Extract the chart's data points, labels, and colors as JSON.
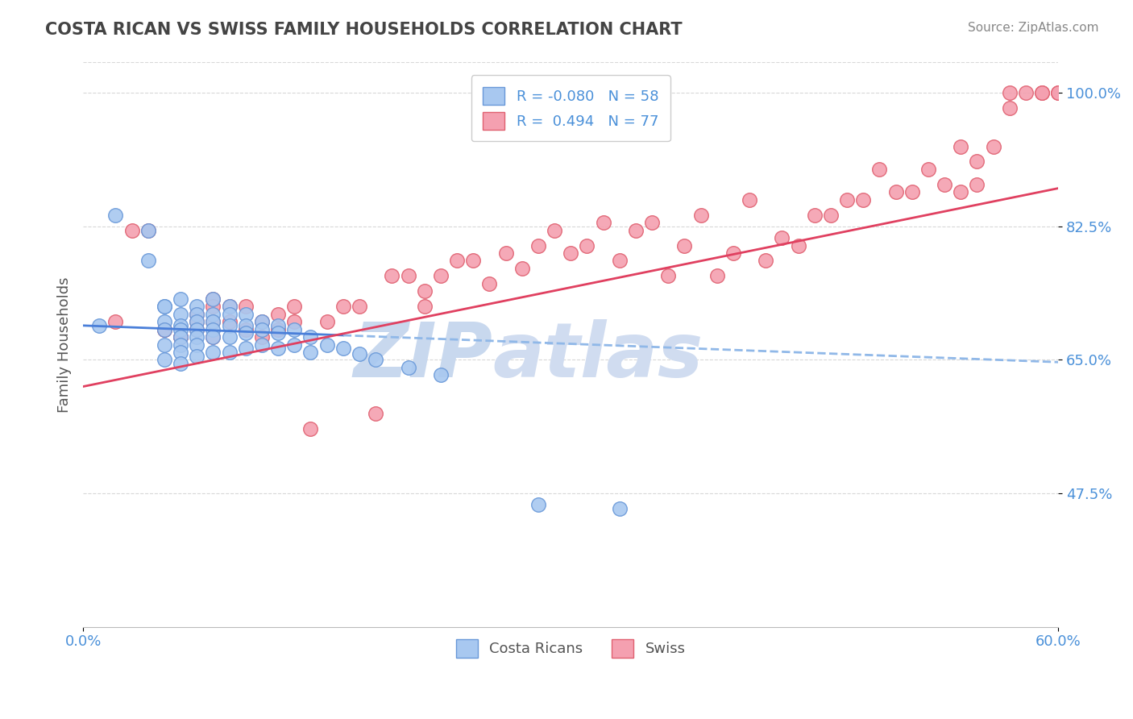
{
  "title": "COSTA RICAN VS SWISS FAMILY HOUSEHOLDS CORRELATION CHART",
  "source_text": "Source: ZipAtlas.com",
  "ylabel": "Family Households",
  "xlim": [
    0.0,
    0.6
  ],
  "ylim": [
    0.3,
    1.04
  ],
  "xtick_labels": [
    "0.0%",
    "60.0%"
  ],
  "xtick_positions": [
    0.0,
    0.6
  ],
  "ytick_labels": [
    "47.5%",
    "65.0%",
    "82.5%",
    "100.0%"
  ],
  "ytick_positions": [
    0.475,
    0.65,
    0.825,
    1.0
  ],
  "legend_labels": [
    "Costa Ricans",
    "Swiss"
  ],
  "blue_color": "#A8C8F0",
  "pink_color": "#F4A0B0",
  "blue_edge": "#6898D8",
  "pink_edge": "#E06070",
  "trend_blue_solid_color": "#4A7FD9",
  "trend_blue_dash_color": "#90B8E8",
  "trend_pink_color": "#E04060",
  "R_blue": -0.08,
  "N_blue": 58,
  "R_pink": 0.494,
  "N_pink": 77,
  "blue_trend_x0": 0.0,
  "blue_trend_y0": 0.695,
  "blue_trend_x1": 0.6,
  "blue_trend_y1": 0.647,
  "blue_trend_solid_end": 0.16,
  "pink_trend_x0": 0.0,
  "pink_trend_y0": 0.615,
  "pink_trend_x1": 0.6,
  "pink_trend_y1": 0.875,
  "watermark_text": "ZIP",
  "watermark_text2": "atlas",
  "watermark_color": "#C8D8EE",
  "background_color": "#FFFFFF",
  "grid_color": "#D8D8D8",
  "title_color": "#444444",
  "label_color": "#4A90D9",
  "blue_scatter_x": [
    0.01,
    0.02,
    0.04,
    0.04,
    0.05,
    0.05,
    0.05,
    0.05,
    0.05,
    0.05,
    0.06,
    0.06,
    0.06,
    0.06,
    0.06,
    0.06,
    0.06,
    0.06,
    0.07,
    0.07,
    0.07,
    0.07,
    0.07,
    0.07,
    0.07,
    0.08,
    0.08,
    0.08,
    0.08,
    0.08,
    0.08,
    0.09,
    0.09,
    0.09,
    0.09,
    0.09,
    0.1,
    0.1,
    0.1,
    0.1,
    0.11,
    0.11,
    0.11,
    0.12,
    0.12,
    0.12,
    0.13,
    0.13,
    0.14,
    0.14,
    0.15,
    0.16,
    0.17,
    0.18,
    0.2,
    0.22,
    0.28,
    0.33
  ],
  "blue_scatter_y": [
    0.695,
    0.84,
    0.82,
    0.78,
    0.72,
    0.7,
    0.69,
    0.67,
    0.65,
    0.72,
    0.73,
    0.71,
    0.695,
    0.69,
    0.68,
    0.67,
    0.66,
    0.645,
    0.72,
    0.71,
    0.7,
    0.69,
    0.68,
    0.67,
    0.655,
    0.73,
    0.71,
    0.7,
    0.69,
    0.68,
    0.66,
    0.72,
    0.71,
    0.695,
    0.68,
    0.66,
    0.71,
    0.695,
    0.685,
    0.665,
    0.7,
    0.69,
    0.67,
    0.695,
    0.685,
    0.665,
    0.69,
    0.67,
    0.68,
    0.66,
    0.67,
    0.665,
    0.658,
    0.65,
    0.64,
    0.63,
    0.46,
    0.455
  ],
  "pink_scatter_x": [
    0.02,
    0.03,
    0.04,
    0.05,
    0.05,
    0.06,
    0.06,
    0.07,
    0.07,
    0.07,
    0.08,
    0.08,
    0.08,
    0.08,
    0.09,
    0.09,
    0.1,
    0.1,
    0.11,
    0.11,
    0.12,
    0.12,
    0.13,
    0.13,
    0.14,
    0.15,
    0.16,
    0.17,
    0.18,
    0.19,
    0.2,
    0.21,
    0.21,
    0.22,
    0.23,
    0.24,
    0.25,
    0.26,
    0.27,
    0.28,
    0.29,
    0.3,
    0.31,
    0.32,
    0.33,
    0.34,
    0.35,
    0.36,
    0.37,
    0.38,
    0.39,
    0.4,
    0.41,
    0.42,
    0.43,
    0.44,
    0.45,
    0.46,
    0.47,
    0.48,
    0.49,
    0.5,
    0.51,
    0.52,
    0.53,
    0.54,
    0.54,
    0.55,
    0.55,
    0.56,
    0.57,
    0.57,
    0.58,
    0.59,
    0.59,
    0.6,
    0.6
  ],
  "pink_scatter_y": [
    0.7,
    0.82,
    0.82,
    0.69,
    0.69,
    0.68,
    0.68,
    0.71,
    0.7,
    0.69,
    0.73,
    0.72,
    0.7,
    0.68,
    0.72,
    0.7,
    0.72,
    0.69,
    0.7,
    0.68,
    0.71,
    0.69,
    0.72,
    0.7,
    0.56,
    0.7,
    0.72,
    0.72,
    0.58,
    0.76,
    0.76,
    0.74,
    0.72,
    0.76,
    0.78,
    0.78,
    0.75,
    0.79,
    0.77,
    0.8,
    0.82,
    0.79,
    0.8,
    0.83,
    0.78,
    0.82,
    0.83,
    0.76,
    0.8,
    0.84,
    0.76,
    0.79,
    0.86,
    0.78,
    0.81,
    0.8,
    0.84,
    0.84,
    0.86,
    0.86,
    0.9,
    0.87,
    0.87,
    0.9,
    0.88,
    0.87,
    0.93,
    0.88,
    0.91,
    0.93,
    0.98,
    1.0,
    1.0,
    1.0,
    1.0,
    1.0,
    1.0
  ]
}
